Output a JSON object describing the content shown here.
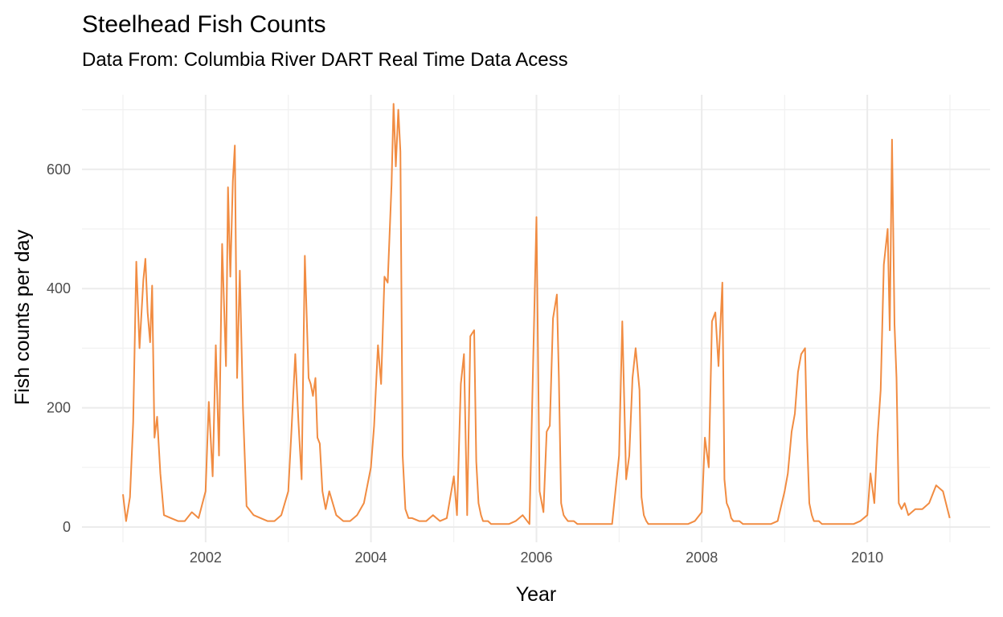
{
  "chart_data": {
    "type": "line",
    "title": "Steelhead Fish Counts",
    "subtitle": "Data From: Columbia River DART Real Time Data Acess",
    "xlabel": "Year",
    "ylabel": "Fish counts per day",
    "x_ticks": [
      2002,
      2004,
      2006,
      2008,
      2010
    ],
    "y_ticks": [
      0,
      200,
      400,
      600
    ],
    "xlim": [
      "2001-01-01",
      "2011-01-01"
    ],
    "ylim": [
      0,
      710
    ],
    "grid": true,
    "legend": "none",
    "series": [
      {
        "color": "#F07F2E",
        "x": [
          "2001-01-01",
          "2001-01-15",
          "2001-02-01",
          "2001-02-15",
          "2001-03-01",
          "2001-03-15",
          "2001-04-01",
          "2001-04-10",
          "2001-04-20",
          "2001-05-01",
          "2001-05-10",
          "2001-05-20",
          "2001-06-01",
          "2001-06-15",
          "2001-07-01",
          "2001-08-01",
          "2001-09-01",
          "2001-10-01",
          "2001-11-01",
          "2001-12-01",
          "2002-01-01",
          "2002-01-15",
          "2002-02-01",
          "2002-02-15",
          "2002-03-01",
          "2002-03-15",
          "2002-04-01",
          "2002-04-10",
          "2002-04-20",
          "2002-05-01",
          "2002-05-10",
          "2002-05-20",
          "2002-06-01",
          "2002-06-15",
          "2002-07-01",
          "2002-08-01",
          "2002-09-01",
          "2002-10-01",
          "2002-11-01",
          "2002-12-01",
          "2003-01-01",
          "2003-01-15",
          "2003-02-01",
          "2003-02-15",
          "2003-03-01",
          "2003-03-15",
          "2003-04-01",
          "2003-04-10",
          "2003-04-20",
          "2003-05-01",
          "2003-05-10",
          "2003-05-20",
          "2003-06-01",
          "2003-06-15",
          "2003-07-01",
          "2003-08-01",
          "2003-09-01",
          "2003-10-01",
          "2003-11-01",
          "2003-12-01",
          "2004-01-01",
          "2004-01-15",
          "2004-02-01",
          "2004-02-15",
          "2004-03-01",
          "2004-03-15",
          "2004-04-01",
          "2004-04-10",
          "2004-04-20",
          "2004-05-01",
          "2004-05-10",
          "2004-05-20",
          "2004-06-01",
          "2004-06-15",
          "2004-07-01",
          "2004-08-01",
          "2004-09-01",
          "2004-10-01",
          "2004-11-01",
          "2004-12-01",
          "2005-01-01",
          "2005-01-15",
          "2005-02-01",
          "2005-02-15",
          "2005-03-01",
          "2005-03-15",
          "2005-04-01",
          "2005-04-10",
          "2005-04-20",
          "2005-05-01",
          "2005-05-10",
          "2005-05-20",
          "2005-06-01",
          "2005-06-15",
          "2005-07-01",
          "2005-08-01",
          "2005-09-01",
          "2005-10-01",
          "2005-11-01",
          "2005-12-01",
          "2006-01-01",
          "2006-01-15",
          "2006-02-01",
          "2006-02-15",
          "2006-03-01",
          "2006-03-15",
          "2006-04-01",
          "2006-04-10",
          "2006-04-20",
          "2006-05-01",
          "2006-05-10",
          "2006-05-20",
          "2006-06-01",
          "2006-06-15",
          "2006-07-01",
          "2006-08-01",
          "2006-09-01",
          "2006-10-01",
          "2006-11-01",
          "2006-12-01",
          "2007-01-01",
          "2007-01-15",
          "2007-02-01",
          "2007-02-15",
          "2007-03-01",
          "2007-03-15",
          "2007-04-01",
          "2007-04-10",
          "2007-04-20",
          "2007-05-01",
          "2007-05-10",
          "2007-05-20",
          "2007-06-01",
          "2007-06-15",
          "2007-07-01",
          "2007-08-01",
          "2007-09-01",
          "2007-10-01",
          "2007-11-01",
          "2007-12-01",
          "2008-01-01",
          "2008-01-15",
          "2008-02-01",
          "2008-02-15",
          "2008-03-01",
          "2008-03-15",
          "2008-04-01",
          "2008-04-10",
          "2008-04-20",
          "2008-05-01",
          "2008-05-10",
          "2008-05-20",
          "2008-06-01",
          "2008-06-15",
          "2008-07-01",
          "2008-08-01",
          "2008-09-01",
          "2008-10-01",
          "2008-11-01",
          "2008-12-01",
          "2009-01-01",
          "2009-01-15",
          "2009-02-01",
          "2009-02-15",
          "2009-03-01",
          "2009-03-15",
          "2009-04-01",
          "2009-04-10",
          "2009-04-20",
          "2009-05-01",
          "2009-05-10",
          "2009-05-20",
          "2009-06-01",
          "2009-06-15",
          "2009-07-01",
          "2009-08-01",
          "2009-09-01",
          "2009-10-01",
          "2009-11-01",
          "2009-12-01",
          "2010-01-01",
          "2010-01-15",
          "2010-02-01",
          "2010-02-15",
          "2010-03-01",
          "2010-03-15",
          "2010-04-01",
          "2010-04-10",
          "2010-04-20",
          "2010-05-01",
          "2010-05-10",
          "2010-05-20",
          "2010-06-01",
          "2010-06-15",
          "2010-07-01",
          "2010-08-01",
          "2010-09-01",
          "2010-10-01",
          "2010-11-01",
          "2010-12-01",
          "2010-12-31"
        ],
        "y": [
          55,
          10,
          50,
          175,
          445,
          300,
          415,
          450,
          360,
          310,
          405,
          150,
          185,
          90,
          20,
          15,
          10,
          10,
          25,
          15,
          60,
          210,
          85,
          305,
          120,
          475,
          270,
          570,
          420,
          580,
          640,
          250,
          430,
          200,
          35,
          20,
          15,
          10,
          10,
          20,
          60,
          160,
          290,
          175,
          80,
          455,
          250,
          240,
          220,
          250,
          150,
          140,
          60,
          30,
          60,
          20,
          10,
          10,
          20,
          40,
          100,
          170,
          305,
          240,
          420,
          410,
          575,
          710,
          605,
          700,
          630,
          120,
          30,
          15,
          15,
          10,
          10,
          20,
          10,
          15,
          85,
          20,
          240,
          290,
          20,
          320,
          330,
          110,
          40,
          20,
          10,
          10,
          10,
          5,
          5,
          5,
          5,
          10,
          20,
          5,
          520,
          60,
          25,
          160,
          170,
          350,
          390,
          250,
          40,
          20,
          15,
          10,
          10,
          10,
          5,
          5,
          5,
          5,
          5,
          5,
          120,
          345,
          80,
          120,
          250,
          300,
          230,
          50,
          20,
          10,
          5,
          5,
          5,
          5,
          5,
          5,
          5,
          5,
          5,
          10,
          25,
          150,
          100,
          345,
          360,
          270,
          410,
          80,
          40,
          30,
          15,
          10,
          10,
          10,
          5,
          5,
          5,
          5,
          5,
          10,
          60,
          90,
          160,
          190,
          260,
          290,
          300,
          150,
          40,
          20,
          10,
          10,
          10,
          5,
          5,
          5,
          5,
          5,
          5,
          10,
          20,
          90,
          40,
          150,
          230,
          440,
          500,
          330,
          650,
          340,
          250,
          40,
          30,
          40,
          20,
          30,
          30,
          40,
          70,
          60,
          15
        ]
      }
    ]
  }
}
